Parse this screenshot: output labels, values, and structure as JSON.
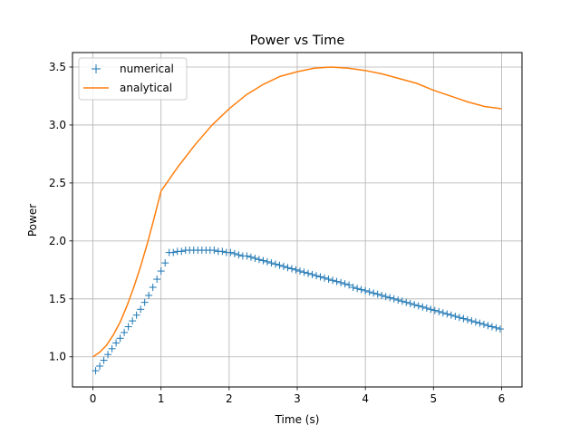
{
  "chart_data": {
    "type": "line",
    "title": "Power vs Time",
    "xlabel": "Time (s)",
    "ylabel": "Power",
    "xlim": [
      -0.3,
      6.3
    ],
    "ylim": [
      0.74,
      3.625
    ],
    "xticks": [
      0,
      1,
      2,
      3,
      4,
      5,
      6
    ],
    "xtick_labels": [
      "0",
      "1",
      "2",
      "3",
      "4",
      "5",
      "6"
    ],
    "yticks": [
      1.0,
      1.5,
      2.0,
      2.5,
      3.0,
      3.5
    ],
    "ytick_labels": [
      "1.0",
      "1.5",
      "2.0",
      "2.5",
      "3.0",
      "3.5"
    ],
    "grid": true,
    "legend_position": "upper-left",
    "series": [
      {
        "name": "numerical",
        "marker": "+",
        "color": "#1f77b4",
        "x": [
          0.04,
          0.1,
          0.16,
          0.22,
          0.28,
          0.34,
          0.4,
          0.46,
          0.52,
          0.58,
          0.64,
          0.7,
          0.76,
          0.82,
          0.88,
          0.94,
          1.0,
          1.06,
          1.12,
          1.18,
          1.24,
          1.3,
          1.36,
          1.42,
          1.48,
          1.54,
          1.6,
          1.66,
          1.72,
          1.78,
          1.84,
          1.9,
          1.96,
          2.02,
          2.08,
          2.14,
          2.2,
          2.26,
          2.32,
          2.38,
          2.44,
          2.5,
          2.56,
          2.62,
          2.68,
          2.74,
          2.8,
          2.86,
          2.92,
          2.98,
          3.04,
          3.1,
          3.16,
          3.22,
          3.28,
          3.34,
          3.4,
          3.46,
          3.52,
          3.58,
          3.64,
          3.7,
          3.76,
          3.82,
          3.88,
          3.94,
          4.0,
          4.06,
          4.12,
          4.18,
          4.24,
          4.3,
          4.36,
          4.42,
          4.48,
          4.54,
          4.6,
          4.66,
          4.72,
          4.78,
          4.84,
          4.9,
          4.96,
          5.02,
          5.08,
          5.14,
          5.2,
          5.26,
          5.32,
          5.38,
          5.44,
          5.5,
          5.56,
          5.62,
          5.68,
          5.74,
          5.8,
          5.86,
          5.92,
          5.98
        ],
        "y": [
          0.88,
          0.92,
          0.97,
          1.02,
          1.07,
          1.12,
          1.16,
          1.21,
          1.26,
          1.31,
          1.36,
          1.41,
          1.47,
          1.53,
          1.6,
          1.67,
          1.74,
          1.81,
          1.9,
          1.9,
          1.91,
          1.91,
          1.92,
          1.92,
          1.92,
          1.92,
          1.92,
          1.92,
          1.92,
          1.92,
          1.91,
          1.91,
          1.9,
          1.9,
          1.89,
          1.88,
          1.87,
          1.87,
          1.86,
          1.85,
          1.84,
          1.83,
          1.82,
          1.81,
          1.8,
          1.79,
          1.78,
          1.77,
          1.76,
          1.75,
          1.74,
          1.73,
          1.72,
          1.71,
          1.7,
          1.69,
          1.68,
          1.67,
          1.66,
          1.65,
          1.64,
          1.63,
          1.62,
          1.6,
          1.59,
          1.58,
          1.57,
          1.56,
          1.55,
          1.54,
          1.53,
          1.52,
          1.51,
          1.5,
          1.49,
          1.48,
          1.47,
          1.46,
          1.45,
          1.44,
          1.43,
          1.42,
          1.41,
          1.4,
          1.39,
          1.38,
          1.37,
          1.36,
          1.35,
          1.34,
          1.33,
          1.32,
          1.31,
          1.3,
          1.29,
          1.28,
          1.27,
          1.26,
          1.25,
          1.24
        ]
      },
      {
        "name": "analytical",
        "marker": "line",
        "color": "#ff7f0e",
        "x": [
          0.0,
          0.1,
          0.2,
          0.3,
          0.4,
          0.5,
          0.6,
          0.7,
          0.8,
          0.9,
          1.0,
          1.25,
          1.5,
          1.75,
          2.0,
          2.25,
          2.5,
          2.75,
          3.0,
          3.25,
          3.5,
          3.75,
          4.0,
          4.25,
          4.5,
          4.75,
          5.0,
          5.25,
          5.5,
          5.75,
          6.0
        ],
        "y": [
          1.0,
          1.04,
          1.1,
          1.19,
          1.3,
          1.44,
          1.6,
          1.78,
          1.98,
          2.2,
          2.43,
          2.64,
          2.83,
          3.0,
          3.14,
          3.26,
          3.35,
          3.42,
          3.46,
          3.49,
          3.5,
          3.49,
          3.47,
          3.44,
          3.4,
          3.36,
          3.3,
          3.25,
          3.2,
          3.16,
          3.14
        ]
      }
    ]
  }
}
